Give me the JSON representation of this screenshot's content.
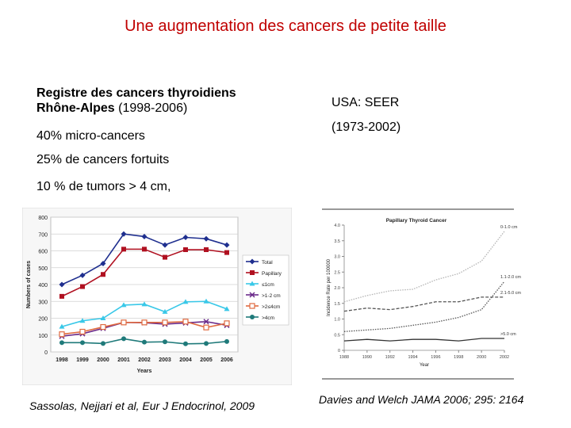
{
  "slide": {
    "title": "Une augmentation des cancers de petite taille",
    "left_text": {
      "registry_line1": "Registre des cancers thyroidiens",
      "registry_line2_bold": "Rhône-Alpes",
      "registry_line2_rest": " (1998-2006)",
      "bullet1": "40% micro-cancers",
      "bullet2": "25% de cancers fortuits",
      "bullet3": "10 % de tumors > 4 cm,"
    },
    "right_text": {
      "source": "USA: SEER",
      "period": "(1973-2002)"
    },
    "citation_left": "Sassolas, Nejjari et al, Eur J Endocrinol, 2009",
    "citation_right": "Davies and Welch JAMA 2006; 295: 2164"
  },
  "chart_data": [
    {
      "type": "line",
      "title": "",
      "xlabel": "Years",
      "ylabel": "Numbers of cases",
      "x": [
        "1998",
        "1999",
        "2000",
        "2001",
        "2002",
        "2003",
        "2004",
        "2005",
        "2006"
      ],
      "ylim": [
        0,
        800
      ],
      "yticks": [
        "0",
        "100",
        "200",
        "300",
        "400",
        "500",
        "600",
        "700",
        "800"
      ],
      "legend_position": "right",
      "series": [
        {
          "name": "Total",
          "color": "#1f2f8f",
          "marker": "diamond",
          "values": [
            400,
            455,
            525,
            700,
            685,
            635,
            680,
            672,
            635
          ]
        },
        {
          "name": "Papillary",
          "color": "#b01020",
          "marker": "square",
          "values": [
            330,
            388,
            460,
            610,
            610,
            562,
            607,
            607,
            590
          ]
        },
        {
          "name": "≤1cm",
          "color": "#39c8e8",
          "marker": "triangle",
          "values": [
            150,
            185,
            200,
            278,
            283,
            238,
            297,
            300,
            255
          ]
        },
        {
          "name": ">1-2 cm",
          "color": "#6a2a8a",
          "marker": "x",
          "values": [
            93,
            108,
            140,
            175,
            173,
            165,
            172,
            180,
            158
          ]
        },
        {
          "name": ">2≤4cm",
          "color": "#e06a40",
          "marker": "square-open",
          "values": [
            105,
            120,
            148,
            175,
            175,
            175,
            180,
            145,
            170
          ]
        },
        {
          "name": ">4cm",
          "color": "#1f7a7a",
          "marker": "circle",
          "values": [
            55,
            55,
            50,
            78,
            58,
            60,
            48,
            50,
            62
          ]
        }
      ]
    },
    {
      "type": "line",
      "title": "Papillary Thyroid Cancer",
      "xlabel": "Year",
      "ylabel": "Incidence Rate per 100000",
      "x": [
        1988,
        1990,
        1992,
        1994,
        1996,
        1998,
        2000,
        2002
      ],
      "xticks": [
        "1988",
        "1990",
        "1992",
        "1994",
        "1996",
        "1998",
        "2000",
        "2002"
      ],
      "ylim": [
        0,
        4.0
      ],
      "yticks": [
        "0",
        "0.5",
        "1.0",
        "1.5",
        "2.0",
        "2.5",
        "3.0",
        "3.5",
        "4.0"
      ],
      "series": [
        {
          "name": "0-1.0 cm",
          "color": "#b4b4b4",
          "style": "dotted",
          "values": [
            1.55,
            1.75,
            1.9,
            1.95,
            2.25,
            2.45,
            2.85,
            3.8
          ]
        },
        {
          "name": "1.1-2.0 cm",
          "color": "#555555",
          "style": "dotted",
          "values": [
            0.6,
            0.65,
            0.7,
            0.8,
            0.9,
            1.05,
            1.3,
            2.2
          ]
        },
        {
          "name": "2.1-5.0 cm",
          "color": "#555555",
          "style": "dashed",
          "values": [
            1.25,
            1.35,
            1.3,
            1.4,
            1.55,
            1.55,
            1.7,
            1.7
          ]
        },
        {
          "name": ">5.0 cm",
          "color": "#333333",
          "style": "solid",
          "values": [
            0.3,
            0.35,
            0.3,
            0.35,
            0.35,
            0.3,
            0.38,
            0.38
          ]
        }
      ]
    }
  ]
}
